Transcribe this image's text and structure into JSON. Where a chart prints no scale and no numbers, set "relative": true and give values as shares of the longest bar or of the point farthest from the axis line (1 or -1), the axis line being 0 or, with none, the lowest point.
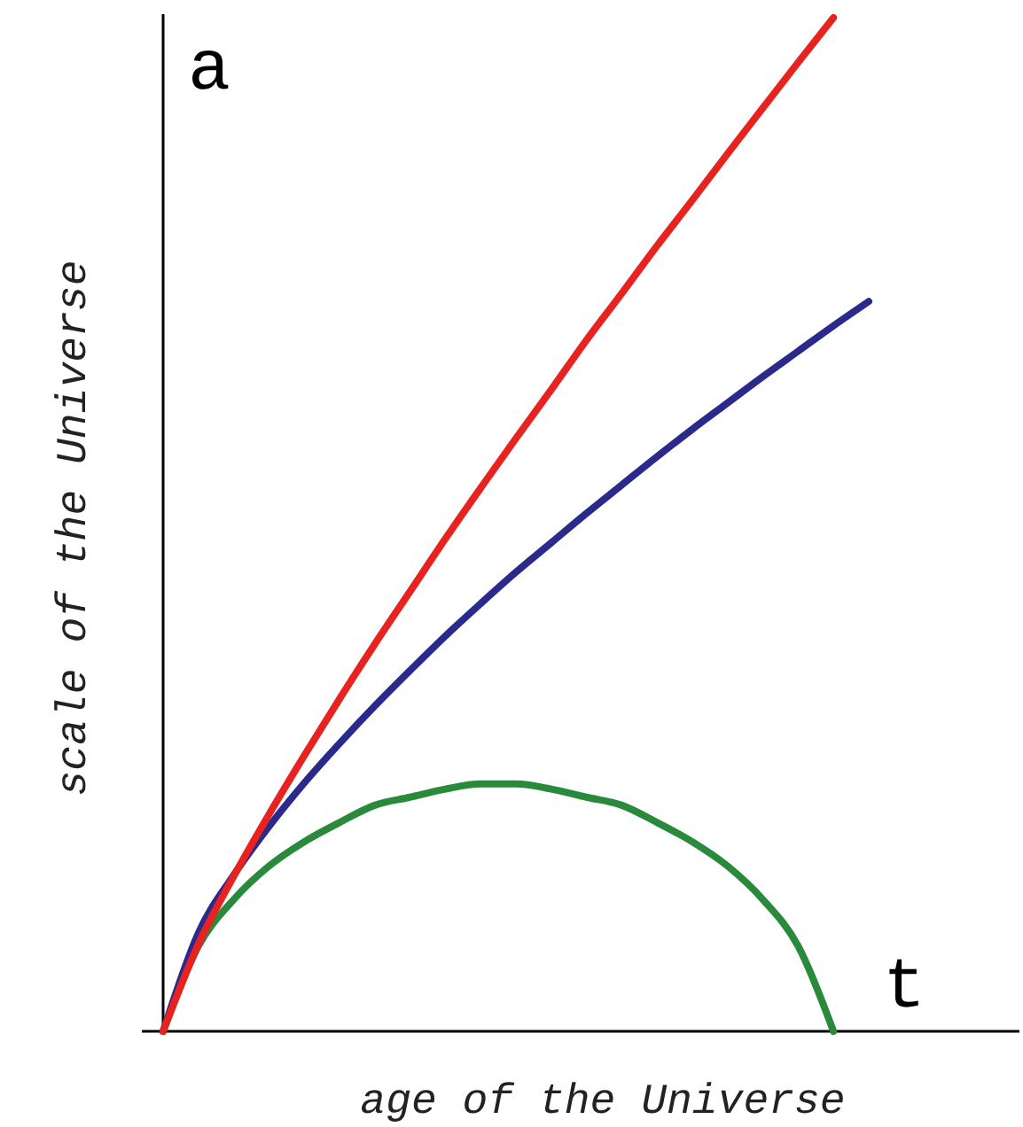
{
  "chart_data": {
    "type": "line",
    "relative": true,
    "xlabel": "age of the Universe",
    "ylabel": "scale of the Universe",
    "annotations": [
      "a",
      "t"
    ],
    "categories": [
      null,
      null,
      null,
      null,
      null,
      null,
      null,
      null,
      null,
      null,
      null,
      null,
      null,
      null,
      null,
      null,
      null,
      null,
      null,
      null,
      null
    ],
    "series": [
      {
        "color": "#e8231f",
        "values": [
          0,
          0.086,
          0.153,
          0.214,
          0.272,
          0.328,
          0.382,
          0.434,
          0.486,
          0.536,
          0.585,
          0.633,
          0.682,
          0.728,
          0.775,
          0.82,
          0.866,
          0.911,
          0.956,
          1,
          null
        ]
      },
      {
        "color": "#2b2a8c",
        "values": [
          0,
          0.097,
          0.154,
          0.202,
          0.245,
          0.284,
          0.321,
          0.356,
          0.39,
          0.422,
          0.453,
          0.482,
          0.511,
          0.539,
          0.567,
          0.594,
          0.62,
          0.646,
          0.671,
          0.696,
          0.72
        ]
      },
      {
        "color": "#2a8a3c",
        "values": [
          0,
          0.084,
          0.13,
          0.163,
          0.187,
          0.206,
          0.223,
          0.231,
          0.239,
          0.244,
          0.244,
          0.239,
          0.231,
          0.223,
          0.206,
          0.187,
          0.163,
          0.13,
          0.084,
          0,
          null
        ]
      }
    ]
  }
}
